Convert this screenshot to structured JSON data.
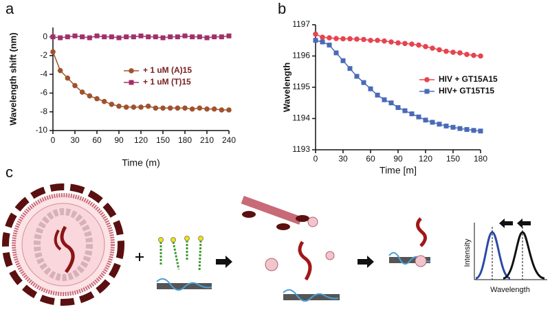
{
  "panel_labels": [
    "a",
    "b",
    "c"
  ],
  "diagram": {
    "y_label": "Intensity",
    "x_label": "Wavelength"
  },
  "chart_data": [
    {
      "type": "line",
      "x_label": "Time (m)",
      "y_label": "Wavelength shift (nm)",
      "x": [
        0,
        10,
        20,
        30,
        40,
        50,
        60,
        70,
        80,
        90,
        100,
        110,
        120,
        130,
        140,
        150,
        160,
        170,
        180,
        190,
        200,
        210,
        220,
        230,
        240
      ],
      "series": [
        {
          "name": "+ 1 uM (A)15",
          "color": "#a0522d",
          "marker": "circle",
          "values": [
            -1.6,
            -3.6,
            -4.4,
            -5.2,
            -5.9,
            -6.3,
            -6.6,
            -6.9,
            -7.2,
            -7.4,
            -7.5,
            -7.5,
            -7.5,
            -7.4,
            -7.6,
            -7.6,
            -7.6,
            -7.6,
            -7.6,
            -7.7,
            -7.6,
            -7.7,
            -7.7,
            -7.8,
            -7.8
          ]
        },
        {
          "name": "+ 1 uM (T)15",
          "color": "#a0306a",
          "marker": "square",
          "values": [
            0,
            -0.1,
            0,
            0.1,
            0,
            -0.1,
            0.1,
            0,
            0,
            -0.1,
            0,
            0,
            0.1,
            0,
            0,
            -0.1,
            0,
            0,
            0.1,
            0,
            0,
            -0.1,
            0,
            0,
            0.1
          ]
        }
      ],
      "xlim": [
        0,
        240
      ],
      "xticks": [
        0,
        30,
        60,
        90,
        120,
        150,
        180,
        210,
        240
      ],
      "ylim": [
        -10,
        1
      ],
      "yticks": [
        0,
        -2,
        -4,
        -6,
        -8,
        -10
      ],
      "legend": "center"
    },
    {
      "type": "line",
      "x_label": "Time [m]",
      "y_label": "Wavelength",
      "x": [
        0,
        7.5,
        15,
        22.5,
        30,
        37.5,
        45,
        52.5,
        60,
        67.5,
        75,
        82.5,
        90,
        97.5,
        105,
        112.5,
        120,
        127.5,
        135,
        142.5,
        150,
        157.5,
        165,
        172.5,
        180
      ],
      "series": [
        {
          "name": "HIV + GT15A15",
          "color": "#e8434f",
          "marker": "circle",
          "values": [
            1196.7,
            1196.6,
            1196.58,
            1196.56,
            1196.55,
            1196.55,
            1196.54,
            1196.53,
            1196.5,
            1196.5,
            1196.48,
            1196.45,
            1196.42,
            1196.4,
            1196.38,
            1196.35,
            1196.3,
            1196.25,
            1196.2,
            1196.15,
            1196.12,
            1196.1,
            1196.05,
            1196.02,
            1196.0
          ]
        },
        {
          "name": "HIV+ GT15T15",
          "color": "#4a6ab8",
          "marker": "square",
          "values": [
            1196.5,
            1196.45,
            1196.35,
            1196.1,
            1195.85,
            1195.6,
            1195.35,
            1195.15,
            1194.95,
            1194.75,
            1194.6,
            1194.5,
            1194.35,
            1194.25,
            1194.15,
            1194.05,
            1193.95,
            1193.88,
            1193.82,
            1193.76,
            1193.72,
            1193.68,
            1193.65,
            1193.62,
            1193.6
          ]
        }
      ],
      "xlim": [
        0,
        180
      ],
      "xticks": [
        0,
        30,
        60,
        90,
        120,
        150,
        180
      ],
      "ylim": [
        1193,
        1197
      ],
      "yticks": [
        1193,
        1194,
        1195,
        1196,
        1197
      ],
      "legend": "right"
    }
  ]
}
